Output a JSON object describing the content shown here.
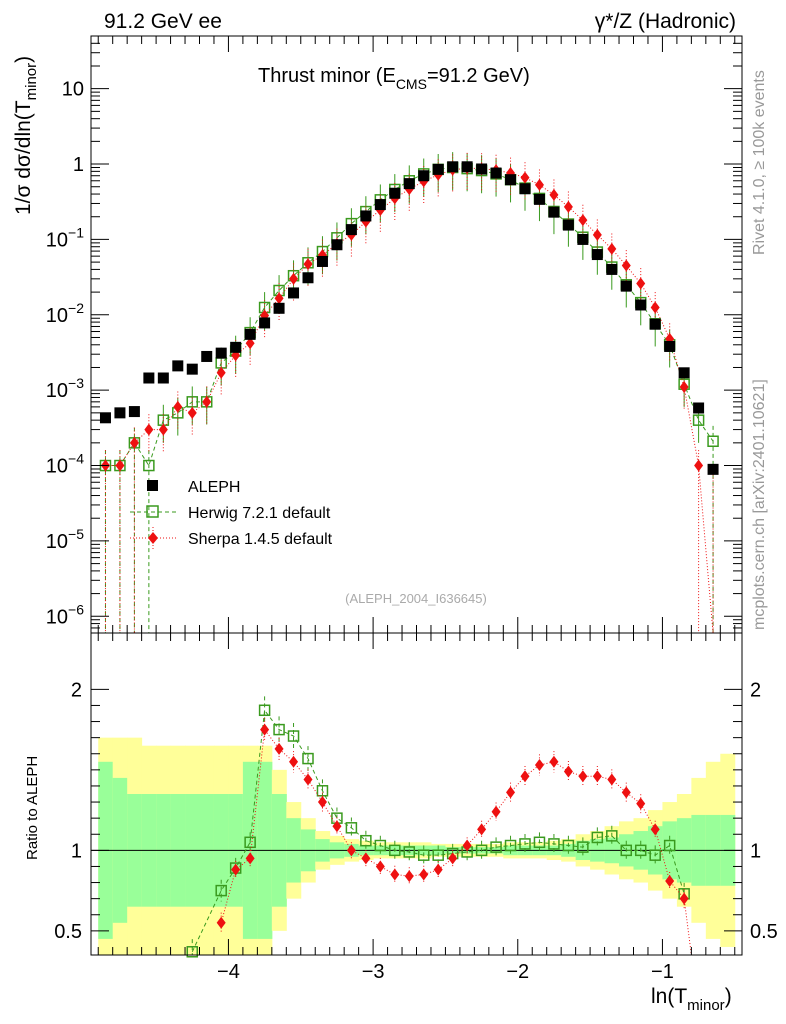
{
  "header": {
    "left": "91.2 GeV ee",
    "right": "γ*/Z (Hadronic)"
  },
  "side_text": {
    "rivet": "Rivet 4.1.0, ≥ 100k events",
    "mcplots": "mcplots.cern.ch [arXiv:2401.10621]"
  },
  "chart_data": [
    {
      "type": "scatter",
      "title": "Thrust minor (E_CMS=91.2 GeV)",
      "title_main": "Thrust minor (E",
      "title_sub": "CMS",
      "title_tail": "=91.2 GeV)",
      "ylabel_main": "1/σ  dσ/dln(T",
      "ylabel_sub": "minor",
      "ylabel_tail": ")",
      "yscale": "log",
      "ylim": [
        6e-07,
        50
      ],
      "xlim": [
        -4.95,
        -0.45
      ],
      "y_ticks": [
        {
          "v": 1e-06,
          "base": "10",
          "exp": "−6"
        },
        {
          "v": 1e-05,
          "base": "10",
          "exp": "−5"
        },
        {
          "v": 0.0001,
          "base": "10",
          "exp": "−4"
        },
        {
          "v": 0.001,
          "base": "10",
          "exp": "−3"
        },
        {
          "v": 0.01,
          "base": "10",
          "exp": "−2"
        },
        {
          "v": 0.1,
          "base": "10",
          "exp": "−1"
        },
        {
          "v": 1,
          "base": "1",
          "exp": ""
        },
        {
          "v": 10,
          "base": "10",
          "exp": ""
        }
      ],
      "watermark": "(ALEPH_2004_I636645)",
      "legend_position": "lower-left",
      "legend": [
        "ALEPH",
        "Herwig 7.2.1 default",
        "Sherpa 1.4.5 default"
      ],
      "series": [
        {
          "name": "ALEPH",
          "color": "#000000",
          "marker": "filled-square",
          "x": [
            -4.85,
            -4.75,
            -4.65,
            -4.55,
            -4.45,
            -4.35,
            -4.25,
            -4.15,
            -4.05,
            -3.95,
            -3.85,
            -3.75,
            -3.65,
            -3.55,
            -3.45,
            -3.35,
            -3.25,
            -3.15,
            -3.05,
            -2.95,
            -2.85,
            -2.75,
            -2.65,
            -2.55,
            -2.45,
            -2.35,
            -2.25,
            -2.15,
            -2.05,
            -1.95,
            -1.85,
            -1.75,
            -1.65,
            -1.55,
            -1.45,
            -1.35,
            -1.25,
            -1.15,
            -1.05,
            -0.95,
            -0.85,
            -0.75,
            -0.65,
            -0.55
          ],
          "y": [
            0.00043,
            0.0005,
            0.00052,
            0.00145,
            0.00145,
            0.0021,
            0.0019,
            0.0028,
            0.0031,
            0.0037,
            0.0055,
            0.0078,
            0.0122,
            0.0195,
            0.031,
            0.051,
            0.085,
            0.135,
            0.205,
            0.29,
            0.41,
            0.55,
            0.7,
            0.85,
            0.92,
            0.92,
            0.86,
            0.76,
            0.62,
            0.47,
            0.34,
            0.23,
            0.155,
            0.1,
            0.063,
            0.04,
            0.024,
            0.0135,
            0.0075,
            0.0038,
            0.0017,
            0.00058,
            8.9e-05,
            0.0
          ]
        },
        {
          "name": "Herwig 7.2.1 default",
          "color": "#3a9a1e",
          "marker": "open-square",
          "x": [
            -4.85,
            -4.75,
            -4.65,
            -4.55,
            -4.45,
            -4.35,
            -4.25,
            -4.15,
            -4.05,
            -3.95,
            -3.85,
            -3.75,
            -3.65,
            -3.55,
            -3.45,
            -3.35,
            -3.25,
            -3.15,
            -3.05,
            -2.95,
            -2.85,
            -2.75,
            -2.65,
            -2.55,
            -2.45,
            -2.35,
            -2.25,
            -2.15,
            -2.05,
            -1.95,
            -1.85,
            -1.75,
            -1.65,
            -1.55,
            -1.45,
            -1.35,
            -1.25,
            -1.15,
            -1.05,
            -0.95,
            -0.85,
            -0.75,
            -0.65
          ],
          "y": [
            0.0001,
            0.0001,
            0.0002,
            0.0001,
            0.0004,
            0.0005,
            0.0007,
            0.0007,
            0.0023,
            0.0033,
            0.0058,
            0.0125,
            0.021,
            0.033,
            0.049,
            0.069,
            0.105,
            0.162,
            0.234,
            0.335,
            0.46,
            0.6,
            0.74,
            0.85,
            0.9,
            0.87,
            0.82,
            0.74,
            0.62,
            0.48,
            0.35,
            0.235,
            0.16,
            0.107,
            0.068,
            0.043,
            0.025,
            0.0145,
            0.0076,
            0.004,
            0.0012,
            0.0004,
            0.00021
          ]
        },
        {
          "name": "Sherpa 1.4.5 default",
          "color": "#ee1111",
          "marker": "filled-diamond",
          "x": [
            -4.85,
            -4.75,
            -4.65,
            -4.55,
            -4.45,
            -4.35,
            -4.25,
            -4.15,
            -4.05,
            -3.95,
            -3.85,
            -3.75,
            -3.65,
            -3.55,
            -3.45,
            -3.35,
            -3.25,
            -3.15,
            -3.05,
            -2.95,
            -2.85,
            -2.75,
            -2.65,
            -2.55,
            -2.45,
            -2.35,
            -2.25,
            -2.15,
            -2.05,
            -1.95,
            -1.85,
            -1.75,
            -1.65,
            -1.55,
            -1.45,
            -1.35,
            -1.25,
            -1.15,
            -1.05,
            -0.95,
            -0.85,
            -0.75,
            -0.65
          ],
          "y": [
            0.0001,
            0.0001,
            0.0002,
            0.0003,
            0.0003,
            0.0006,
            0.0005,
            0.0007,
            0.0017,
            0.0029,
            0.0042,
            0.0098,
            0.0165,
            0.03,
            0.047,
            0.062,
            0.087,
            0.115,
            0.172,
            0.245,
            0.35,
            0.465,
            0.59,
            0.72,
            0.84,
            0.88,
            0.87,
            0.83,
            0.76,
            0.66,
            0.53,
            0.39,
            0.27,
            0.18,
            0.115,
            0.075,
            0.045,
            0.026,
            0.0125,
            0.0048,
            0.0011,
            0.0001,
            0.0
          ]
        }
      ]
    },
    {
      "type": "line",
      "title": "Ratio to ALEPH",
      "ylabel": "Ratio to ALEPH",
      "xlabel_main": "ln(T",
      "xlabel_sub": "minor",
      "xlabel_tail": ")",
      "ylim": [
        0.35,
        2.35
      ],
      "y_ticks": [
        {
          "v": 0.5,
          "label": "0.5"
        },
        {
          "v": 1,
          "label": "1"
        },
        {
          "v": 2,
          "label": "2"
        }
      ],
      "x_ticks": [
        {
          "v": -4,
          "label": "−4"
        },
        {
          "v": -3,
          "label": "−3"
        },
        {
          "v": -2,
          "label": "−2"
        },
        {
          "v": -1,
          "label": "−1"
        }
      ],
      "band_edges": [
        -4.9,
        -4.8,
        -4.7,
        -4.6,
        -4.5,
        -4.4,
        -4.3,
        -4.2,
        -4.1,
        -4.0,
        -3.9,
        -3.8,
        -3.7,
        -3.6,
        -3.5,
        -3.4,
        -3.3,
        -3.2,
        -3.1,
        -3.0,
        -2.9,
        -2.8,
        -2.7,
        -2.6,
        -2.5,
        -2.4,
        -2.3,
        -2.2,
        -2.1,
        -2.0,
        -1.9,
        -1.8,
        -1.7,
        -1.6,
        -1.5,
        -1.4,
        -1.3,
        -1.2,
        -1.1,
        -1.0,
        -0.9,
        -0.8,
        -0.7,
        -0.6,
        -0.5
      ],
      "band_stat": [
        0.55,
        0.45,
        0.35,
        0.35,
        0.35,
        0.35,
        0.35,
        0.35,
        0.35,
        0.35,
        0.55,
        0.55,
        0.35,
        0.2,
        0.13,
        0.07,
        0.05,
        0.04,
        0.03,
        0.03,
        0.03,
        0.03,
        0.03,
        0.03,
        0.02,
        0.02,
        0.02,
        0.02,
        0.03,
        0.03,
        0.03,
        0.03,
        0.04,
        0.06,
        0.07,
        0.08,
        0.1,
        0.12,
        0.15,
        0.18,
        0.2,
        0.22,
        0.22,
        0.22
      ],
      "band_total": [
        0.7,
        0.7,
        0.7,
        0.65,
        0.65,
        0.65,
        0.65,
        0.65,
        0.65,
        0.65,
        0.65,
        0.65,
        0.5,
        0.3,
        0.2,
        0.12,
        0.09,
        0.07,
        0.06,
        0.05,
        0.05,
        0.05,
        0.05,
        0.04,
        0.04,
        0.04,
        0.04,
        0.04,
        0.05,
        0.05,
        0.05,
        0.06,
        0.07,
        0.1,
        0.12,
        0.15,
        0.18,
        0.2,
        0.25,
        0.3,
        0.35,
        0.45,
        0.55,
        0.6
      ],
      "series": [
        {
          "name": "Herwig 7.2.1 default",
          "color": "#3a9a1e",
          "x": [
            -4.25,
            -4.05,
            -3.95,
            -3.85,
            -3.75,
            -3.65,
            -3.55,
            -3.45,
            -3.35,
            -3.25,
            -3.15,
            -3.05,
            -2.95,
            -2.85,
            -2.75,
            -2.65,
            -2.55,
            -2.45,
            -2.35,
            -2.25,
            -2.15,
            -2.05,
            -1.95,
            -1.85,
            -1.75,
            -1.65,
            -1.55,
            -1.45,
            -1.35,
            -1.25,
            -1.15,
            -1.05,
            -0.95,
            -0.85
          ],
          "y": [
            0.37,
            0.75,
            0.89,
            1.05,
            1.87,
            1.75,
            1.71,
            1.57,
            1.37,
            1.2,
            1.14,
            1.06,
            1.03,
            1.0,
            0.99,
            0.97,
            0.97,
            0.98,
            0.99,
            1.0,
            1.02,
            1.03,
            1.04,
            1.05,
            1.04,
            1.03,
            1.02,
            1.08,
            1.09,
            1.0,
            1.0,
            0.97,
            1.03,
            0.73
          ]
        },
        {
          "name": "Sherpa 1.4.5 default",
          "color": "#ee1111",
          "x": [
            -4.05,
            -3.95,
            -3.85,
            -3.75,
            -3.65,
            -3.55,
            -3.45,
            -3.35,
            -3.25,
            -3.15,
            -3.05,
            -2.95,
            -2.85,
            -2.75,
            -2.65,
            -2.55,
            -2.45,
            -2.35,
            -2.25,
            -2.15,
            -2.05,
            -1.95,
            -1.85,
            -1.75,
            -1.65,
            -1.55,
            -1.45,
            -1.35,
            -1.25,
            -1.15,
            -1.05,
            -0.95,
            -0.85
          ],
          "y": [
            0.55,
            0.88,
            0.95,
            1.75,
            1.63,
            1.55,
            1.44,
            1.3,
            1.15,
            1.0,
            0.95,
            0.9,
            0.85,
            0.84,
            0.85,
            0.88,
            0.95,
            1.03,
            1.13,
            1.24,
            1.36,
            1.46,
            1.53,
            1.55,
            1.49,
            1.46,
            1.46,
            1.44,
            1.36,
            1.29,
            1.13,
            0.81,
            0.7
          ]
        }
      ]
    }
  ]
}
